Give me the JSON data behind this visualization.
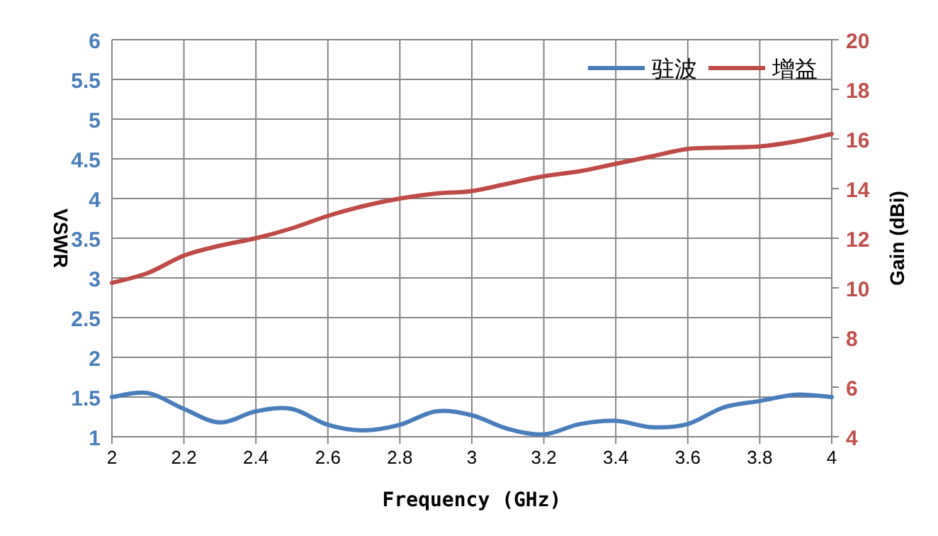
{
  "chart_data": {
    "type": "line",
    "xlabel": "Frequency (GHz)",
    "ylabel": "VSWR",
    "y2label": "Gain (dBi)",
    "x": [
      2,
      2.1,
      2.2,
      2.3,
      2.4,
      2.5,
      2.6,
      2.7,
      2.8,
      2.9,
      3,
      3.1,
      3.2,
      3.3,
      3.4,
      3.5,
      3.6,
      3.7,
      3.8,
      3.9,
      4
    ],
    "series": [
      {
        "name": "驻波",
        "color": "#4a7ebb",
        "values": [
          1.5,
          1.55,
          1.35,
          1.18,
          1.32,
          1.35,
          1.15,
          1.08,
          1.15,
          1.32,
          1.27,
          1.1,
          1.03,
          1.16,
          1.2,
          1.12,
          1.16,
          1.37,
          1.45,
          1.53,
          1.5
        ]
      },
      {
        "name": "增益",
        "color": "#be4b48",
        "axis": "y2",
        "values": [
          10.2,
          10.6,
          11.3,
          11.7,
          12.0,
          12.4,
          12.9,
          13.3,
          13.6,
          13.8,
          13.9,
          14.2,
          14.5,
          14.7,
          15.0,
          15.3,
          15.6,
          15.65,
          15.7,
          15.9,
          16.2
        ]
      }
    ],
    "xlim": [
      2,
      4
    ],
    "xticks": [
      2,
      2.2,
      2.4,
      2.6,
      2.8,
      3,
      3.2,
      3.4,
      3.6,
      3.8,
      4
    ],
    "ylim": [
      1,
      6
    ],
    "yticks": [
      1,
      1.5,
      2,
      2.5,
      3,
      3.5,
      4,
      4.5,
      5,
      5.5,
      6
    ],
    "y2lim": [
      4,
      20
    ],
    "y2ticks": [
      4,
      6,
      8,
      10,
      12,
      14,
      16,
      18,
      20
    ],
    "grid": true,
    "legend": "top right"
  }
}
